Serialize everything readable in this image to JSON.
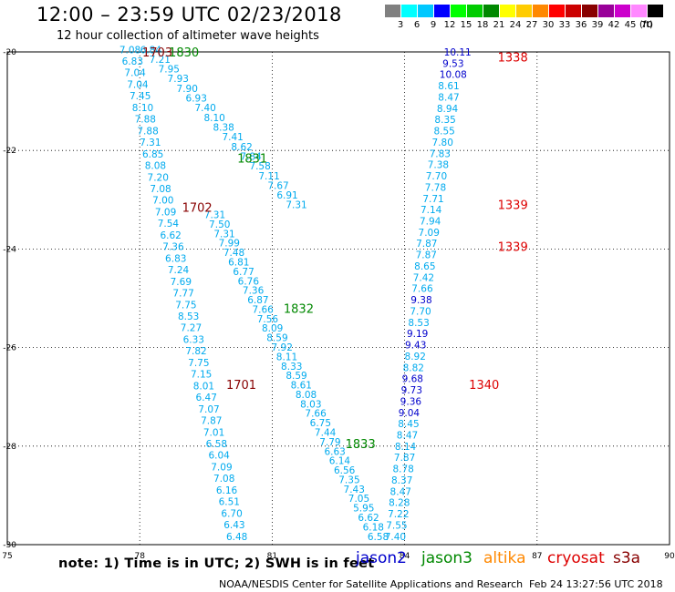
{
  "header": {
    "title": "12:00 – 23:59 UTC 02/23/2018",
    "subtitle": "12 hour collection of altimeter wave heights"
  },
  "colorbar": {
    "unit_label": "(ft)",
    "bins": [
      {
        "label": "3",
        "color": "#808080"
      },
      {
        "label": "6",
        "color": "#00ffff"
      },
      {
        "label": "9",
        "color": "#00c8ff"
      },
      {
        "label": "12",
        "color": "#0000ff"
      },
      {
        "label": "15",
        "color": "#00ff00"
      },
      {
        "label": "18",
        "color": "#00cc00"
      },
      {
        "label": "21",
        "color": "#008800"
      },
      {
        "label": "24",
        "color": "#ffff00"
      },
      {
        "label": "27",
        "color": "#ffcc00"
      },
      {
        "label": "30",
        "color": "#ff8800"
      },
      {
        "label": "33",
        "color": "#ff0000"
      },
      {
        "label": "36",
        "color": "#cc0000"
      },
      {
        "label": "39",
        "color": "#880000"
      },
      {
        "label": "42",
        "color": "#990099"
      },
      {
        "label": "45",
        "color": "#cc00cc"
      },
      {
        "label": "70",
        "color": "#ff88ff"
      },
      {
        "label": "",
        "color": "#000000"
      }
    ]
  },
  "footer": {
    "note": "note: 1) Time is in UTC; 2) SWH is in feet",
    "credit": "NOAA/NESDIS Center for Satellite Applications and Research",
    "generated": "Feb 24 13:27:56 UTC 2018"
  },
  "legend": [
    {
      "name": "jason2",
      "color": "#0000cc"
    },
    {
      "name": "jason3",
      "color": "#008800"
    },
    {
      "name": "altika",
      "color": "#ff8800"
    },
    {
      "name": "cryosat",
      "color": "#dd0000"
    },
    {
      "name": "s3a",
      "color": "#880000"
    }
  ],
  "chart_data": {
    "type": "scatter",
    "x_axis": {
      "range": [
        75,
        90
      ],
      "ticks": [
        75,
        78,
        81,
        84,
        87,
        90
      ]
    },
    "y_axis": {
      "range": [
        -30,
        -20
      ],
      "ticks": [
        -20,
        -22,
        -24,
        -26,
        -28,
        -30
      ]
    },
    "grid": true,
    "colors": {
      "light_blue": "#00aaee",
      "dark_blue": "#0000cc",
      "green": "#008800",
      "red": "#dd0000",
      "dark_red": "#880000"
    },
    "time_labels": [
      {
        "text": "1703",
        "x": 78.4,
        "y": -20.0,
        "color": "#880000"
      },
      {
        "text": "1830",
        "x": 79.0,
        "y": -20.0,
        "color": "#008800"
      },
      {
        "text": "1831",
        "x": 80.55,
        "y": -22.15,
        "color": "#008800"
      },
      {
        "text": "1702",
        "x": 79.3,
        "y": -23.15,
        "color": "#880000"
      },
      {
        "text": "1832",
        "x": 81.6,
        "y": -25.2,
        "color": "#008800"
      },
      {
        "text": "1701",
        "x": 80.3,
        "y": -26.75,
        "color": "#880000"
      },
      {
        "text": "1833",
        "x": 83.0,
        "y": -27.95,
        "color": "#008800"
      },
      {
        "text": "1338",
        "x": 86.45,
        "y": -20.1,
        "color": "#dd0000"
      },
      {
        "text": "1339",
        "x": 86.45,
        "y": -23.1,
        "color": "#dd0000"
      },
      {
        "text": "1339",
        "x": 86.45,
        "y": -23.95,
        "color": "#dd0000"
      },
      {
        "text": "1340",
        "x": 85.8,
        "y": -26.75,
        "color": "#dd0000"
      }
    ],
    "tracks": [
      {
        "name": "track-a",
        "color": "light_blue",
        "x_start": 77.78,
        "x_end": 80.2,
        "y_start": -19.95,
        "y_end": -29.83,
        "values": [
          "7.08",
          "6.83",
          "7.04",
          "7.04",
          "7.45",
          "8.10",
          "7.88",
          "7.88",
          "7.31",
          "6.85",
          "8.08",
          "7.20",
          "7.08",
          "7.00",
          "7.09",
          "7.54",
          "6.62",
          "7.36",
          "6.83",
          "7.24",
          "7.69",
          "7.77",
          "7.75",
          "8.53",
          "7.27",
          "6.33",
          "7.82",
          "7.75",
          "7.15",
          "8.01",
          "6.47",
          "7.07",
          "7.87",
          "7.01",
          "6.58",
          "6.04",
          "7.09",
          "7.08",
          "6.16",
          "6.51",
          "6.70",
          "6.43",
          "6.48"
        ]
      },
      {
        "name": "track-b",
        "color": "light_blue",
        "x_start": 78.25,
        "x_end": 81.55,
        "y_start": -19.95,
        "y_end": -23.1,
        "values": [
          "6.84",
          "7.21",
          "7.95",
          "7.93",
          "7.90",
          "6.93",
          "7.40",
          "8.10",
          "8.38",
          "7.41",
          "8.62",
          "7.84",
          "7.58",
          "7.11",
          "7.67",
          "6.91",
          "7.31"
        ]
      },
      {
        "name": "track-c",
        "color": "light_blue",
        "x_start": 79.7,
        "x_end": 83.4,
        "y_start": -23.3,
        "y_end": -29.83,
        "values": [
          "7.31",
          "7.50",
          "7.31",
          "7.99",
          "7.48",
          "6.81",
          "6.77",
          "6.76",
          "7.36",
          "6.87",
          "7.66",
          "7.56",
          "8.09",
          "8.59",
          "7.92",
          "8.11",
          "8.33",
          "8.59",
          "8.61",
          "8.08",
          "8.03",
          "7.66",
          "6.75",
          "7.44",
          "7.79",
          "6.63",
          "6.14",
          "6.56",
          "7.35",
          "7.43",
          "7.05",
          "5.95",
          "6.62",
          "6.18",
          "6.58"
        ]
      },
      {
        "name": "track-d",
        "values": [
          "10.11",
          "9.53",
          "10.08",
          "8.61",
          "8.47",
          "8.94",
          "8.35",
          "8.55",
          "7.80",
          "7.83",
          "7.38",
          "7.70",
          "7.78",
          "7.71",
          "7.14",
          "7.94",
          "7.09",
          "7.87",
          "7.87",
          "8.65",
          "7.42",
          "7.66",
          "9.38",
          "7.70",
          "8.53",
          "9.19",
          "9.43",
          "8.92",
          "8.82",
          "9.68",
          "9.73",
          "9.36",
          "9.04",
          "8.45",
          "8.47",
          "8.14",
          "7.87",
          "8.78",
          "8.37",
          "8.47",
          "8.28",
          "7.22",
          "7.55",
          "7.40"
        ],
        "colors": [
          "dark_blue",
          "dark_blue",
          "dark_blue",
          "light_blue",
          "light_blue",
          "light_blue",
          "light_blue",
          "light_blue",
          "light_blue",
          "light_blue",
          "light_blue",
          "light_blue",
          "light_blue",
          "light_blue",
          "light_blue",
          "light_blue",
          "light_blue",
          "light_blue",
          "light_blue",
          "light_blue",
          "light_blue",
          "light_blue",
          "dark_blue",
          "light_blue",
          "light_blue",
          "dark_blue",
          "dark_blue",
          "light_blue",
          "light_blue",
          "dark_blue",
          "dark_blue",
          "dark_blue",
          "dark_blue",
          "light_blue",
          "light_blue",
          "light_blue",
          "light_blue",
          "light_blue",
          "light_blue",
          "light_blue",
          "light_blue",
          "light_blue",
          "light_blue",
          "light_blue"
        ],
        "x": [
          85.2,
          85.1,
          85.1,
          85.0,
          85.0,
          84.97,
          84.92,
          84.9,
          84.86,
          84.8,
          84.76,
          84.72,
          84.7,
          84.65,
          84.6,
          84.58,
          84.55,
          84.5,
          84.49,
          84.46,
          84.43,
          84.4,
          84.38,
          84.36,
          84.32,
          84.29,
          84.25,
          84.24,
          84.2,
          84.18,
          84.16,
          84.14,
          84.1,
          84.09,
          84.06,
          84.02,
          84.0,
          83.97,
          83.94,
          83.91,
          83.88,
          83.86,
          83.82,
          83.79
        ],
        "y_start": -20.0,
        "y_end": -29.83
      }
    ]
  }
}
